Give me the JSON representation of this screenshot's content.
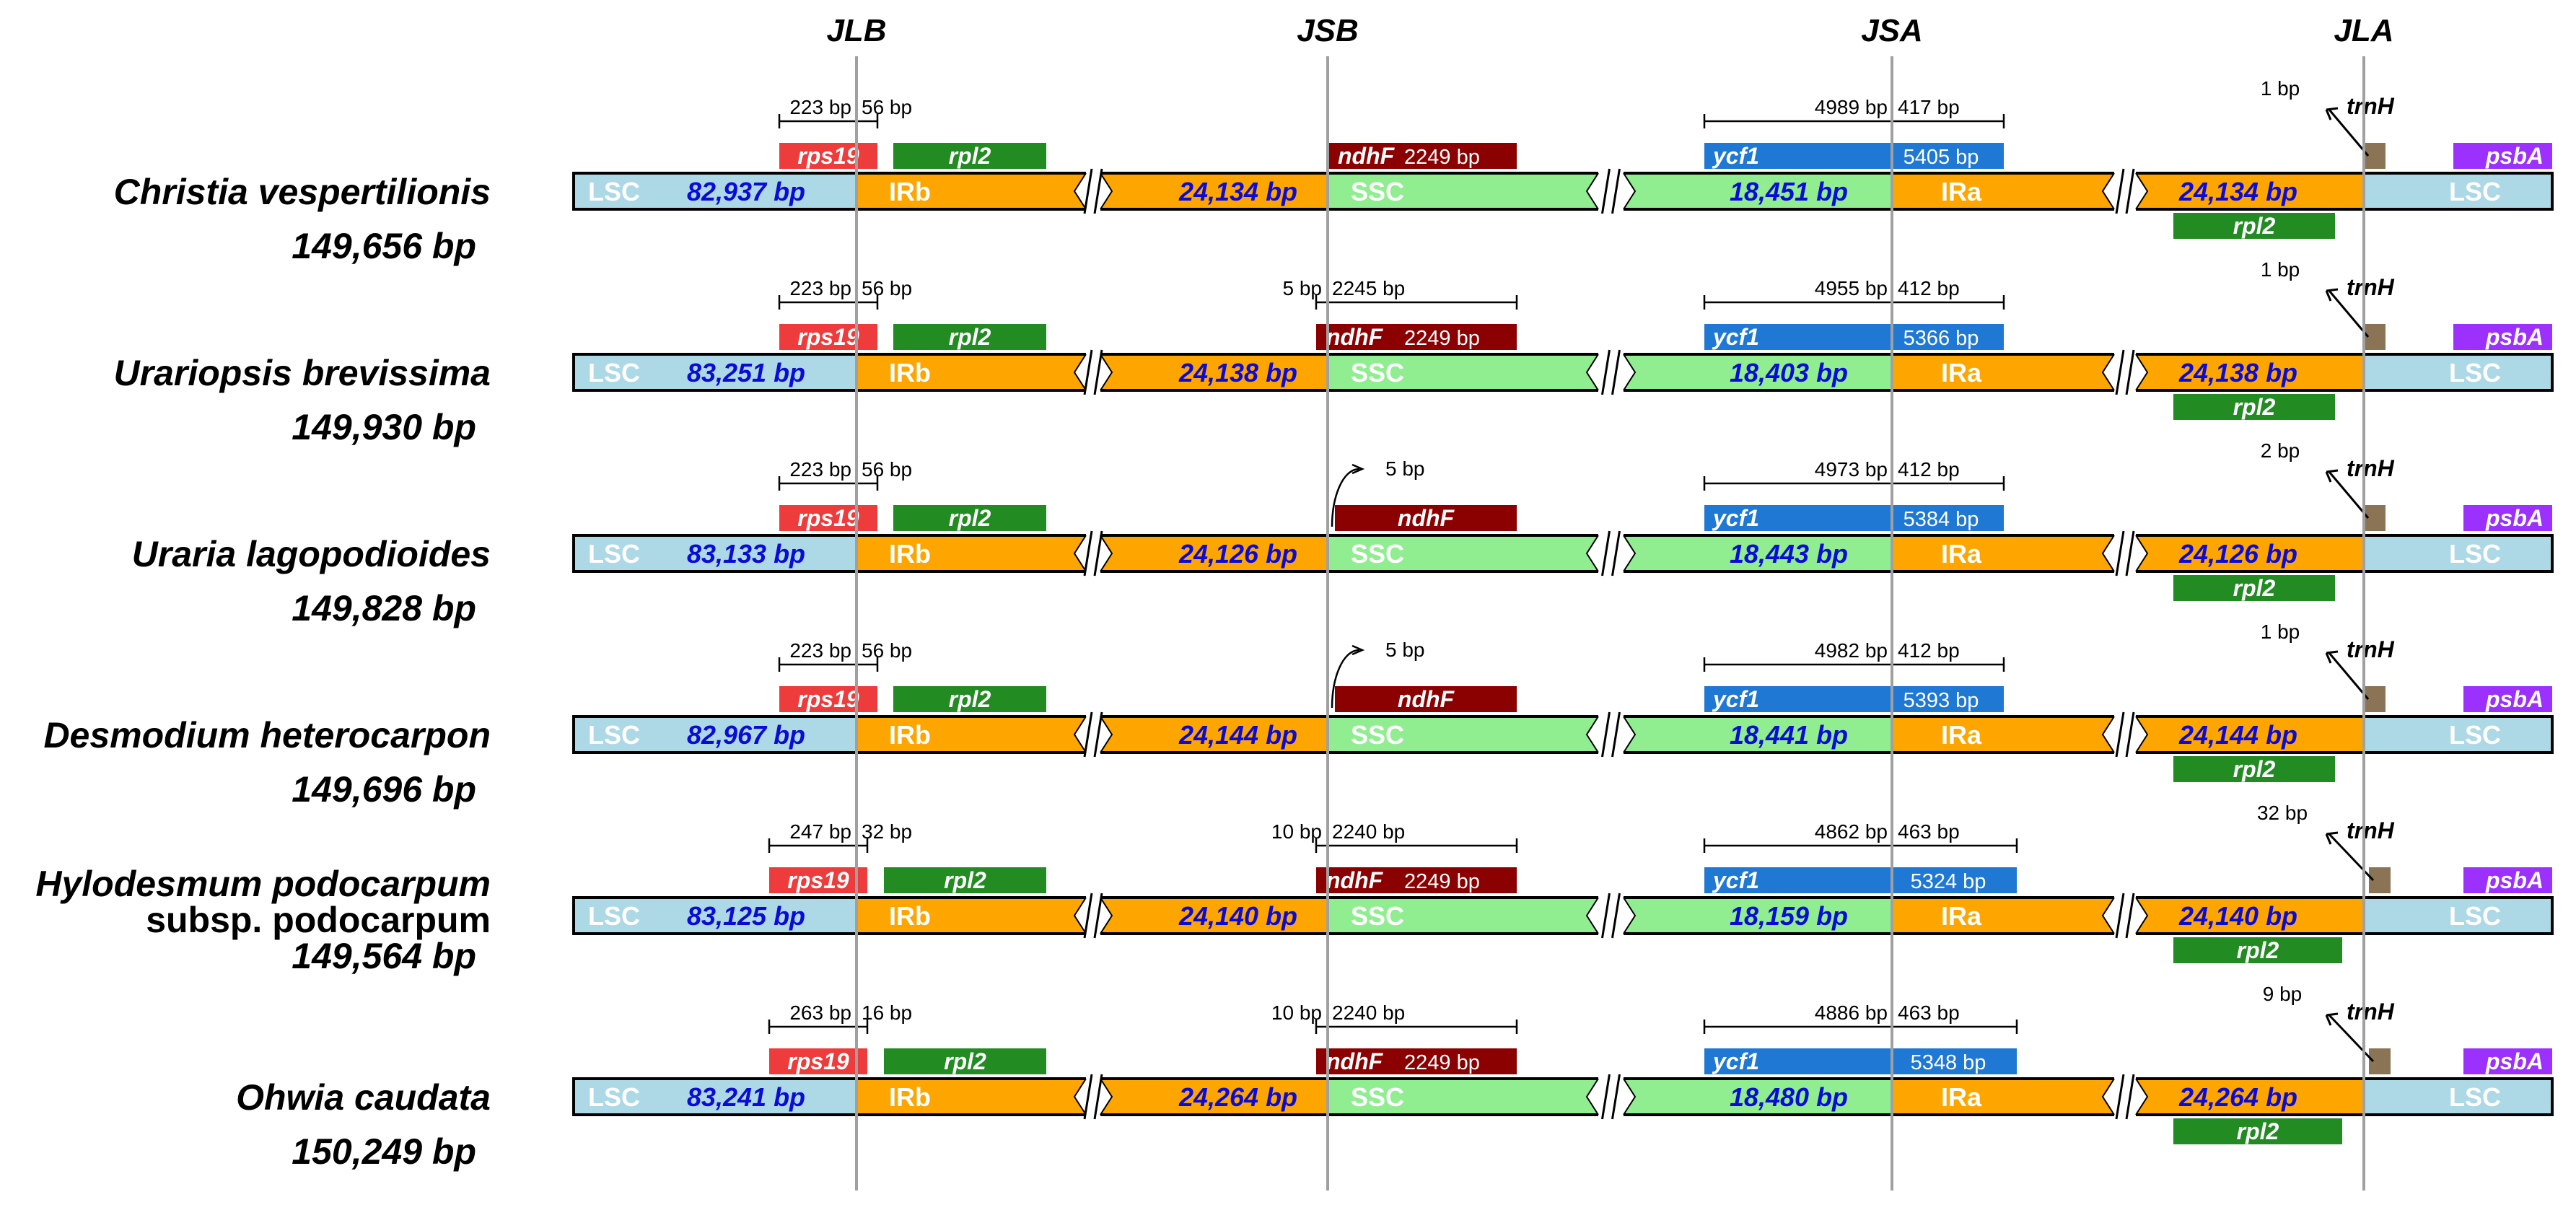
{
  "junctions": [
    "JLB",
    "JSB",
    "JSA",
    "JLA"
  ],
  "regions": {
    "lsc": "LSC",
    "irb": "IRb",
    "ssc": "SSC",
    "ira": "IRa"
  },
  "genes": {
    "rps19": "rps19",
    "rpl2": "rpl2",
    "ndhF": "ndhF",
    "ycf1": "ycf1",
    "trnH": "trnH",
    "psbA": "psbA"
  },
  "colors": {
    "lsc": "#add8e6",
    "ir": "#ffa500",
    "ssc": "#90ee90",
    "rps19": "#ee3b3b",
    "rpl2": "#228b22",
    "ndhF": "#8b0000",
    "ycf1": "#1e78d4",
    "trnH": "#8b7355",
    "psbA": "#9b30ff",
    "junction_line": "#a0a0a0",
    "size_text": "#0b0bd8"
  },
  "species": [
    {
      "name": "Christia vespertilionis",
      "name_line2": "",
      "total": "149,656 bp",
      "lsc": "82,937 bp",
      "irb": "24,134 bp",
      "ssc": "18,451 bp",
      "ira": "24,134 bp",
      "rps19_left": "223 bp",
      "rps19_right": "56 bp",
      "ndhF_style": "span",
      "ndhF_left": "",
      "ndhF_right": "",
      "ndhF_len": "2249 bp",
      "ycf1_left": "4989 bp",
      "ycf1_right": "417 bp",
      "ycf1_len": "5405 bp",
      "trnH_dist": "1 bp"
    },
    {
      "name": "Urariopsis brevissima",
      "name_line2": "",
      "total": "149,930 bp",
      "lsc": "83,251 bp",
      "irb": "24,138 bp",
      "ssc": "18,403 bp",
      "ira": "24,138 bp",
      "rps19_left": "223 bp",
      "rps19_right": "56 bp",
      "ndhF_style": "span",
      "ndhF_left": "5 bp",
      "ndhF_right": "2245 bp",
      "ndhF_len": "2249 bp",
      "ycf1_left": "4955 bp",
      "ycf1_right": "412 bp",
      "ycf1_len": "5366 bp",
      "trnH_dist": "1 bp"
    },
    {
      "name": "Uraria lagopodioides",
      "name_line2": "",
      "total": "149,828 bp",
      "lsc": "83,133 bp",
      "irb": "24,126 bp",
      "ssc": "18,443 bp",
      "ira": "24,126 bp",
      "rps19_left": "223 bp",
      "rps19_right": "56 bp",
      "ndhF_style": "gap",
      "ndhF_left": "",
      "ndhF_right": "",
      "ndhF_gap": "5 bp",
      "ycf1_left": "4973 bp",
      "ycf1_right": "412 bp",
      "ycf1_len": "5384 bp",
      "trnH_dist": "2 bp"
    },
    {
      "name": "Desmodium heterocarpon",
      "name_line2": "",
      "total": "149,696 bp",
      "lsc": "82,967 bp",
      "irb": "24,144 bp",
      "ssc": "18,441 bp",
      "ira": "24,144 bp",
      "rps19_left": "223 bp",
      "rps19_right": "56 bp",
      "ndhF_style": "gap",
      "ndhF_left": "",
      "ndhF_right": "",
      "ndhF_gap": "5 bp",
      "ycf1_left": "4982 bp",
      "ycf1_right": "412 bp",
      "ycf1_len": "5393 bp",
      "trnH_dist": "1 bp"
    },
    {
      "name": "Hylodesmum podocarpum",
      "name_line2": "subsp. podocarpum",
      "total": "149,564 bp",
      "lsc": "83,125 bp",
      "irb": "24,140 bp",
      "ssc": "18,159 bp",
      "ira": "24,140 bp",
      "rps19_left": "247 bp",
      "rps19_right": "32 bp",
      "ndhF_style": "span",
      "ndhF_left": "10 bp",
      "ndhF_right": "2240 bp",
      "ndhF_len": "2249 bp",
      "ycf1_left": "4862 bp",
      "ycf1_right": "463 bp",
      "ycf1_len": "5324 bp",
      "trnH_dist": "32 bp"
    },
    {
      "name": "Ohwia caudata",
      "name_line2": "",
      "total": "150,249 bp",
      "lsc": "83,241 bp",
      "irb": "24,264 bp",
      "ssc": "18,480 bp",
      "ira": "24,264 bp",
      "rps19_left": "263 bp",
      "rps19_right": "16 bp",
      "ndhF_style": "span",
      "ndhF_left": "10 bp",
      "ndhF_right": "2240 bp",
      "ndhF_len": "2249 bp",
      "ycf1_left": "4886 bp",
      "ycf1_right": "463 bp",
      "ycf1_len": "5348 bp",
      "trnH_dist": "9 bp"
    }
  ]
}
